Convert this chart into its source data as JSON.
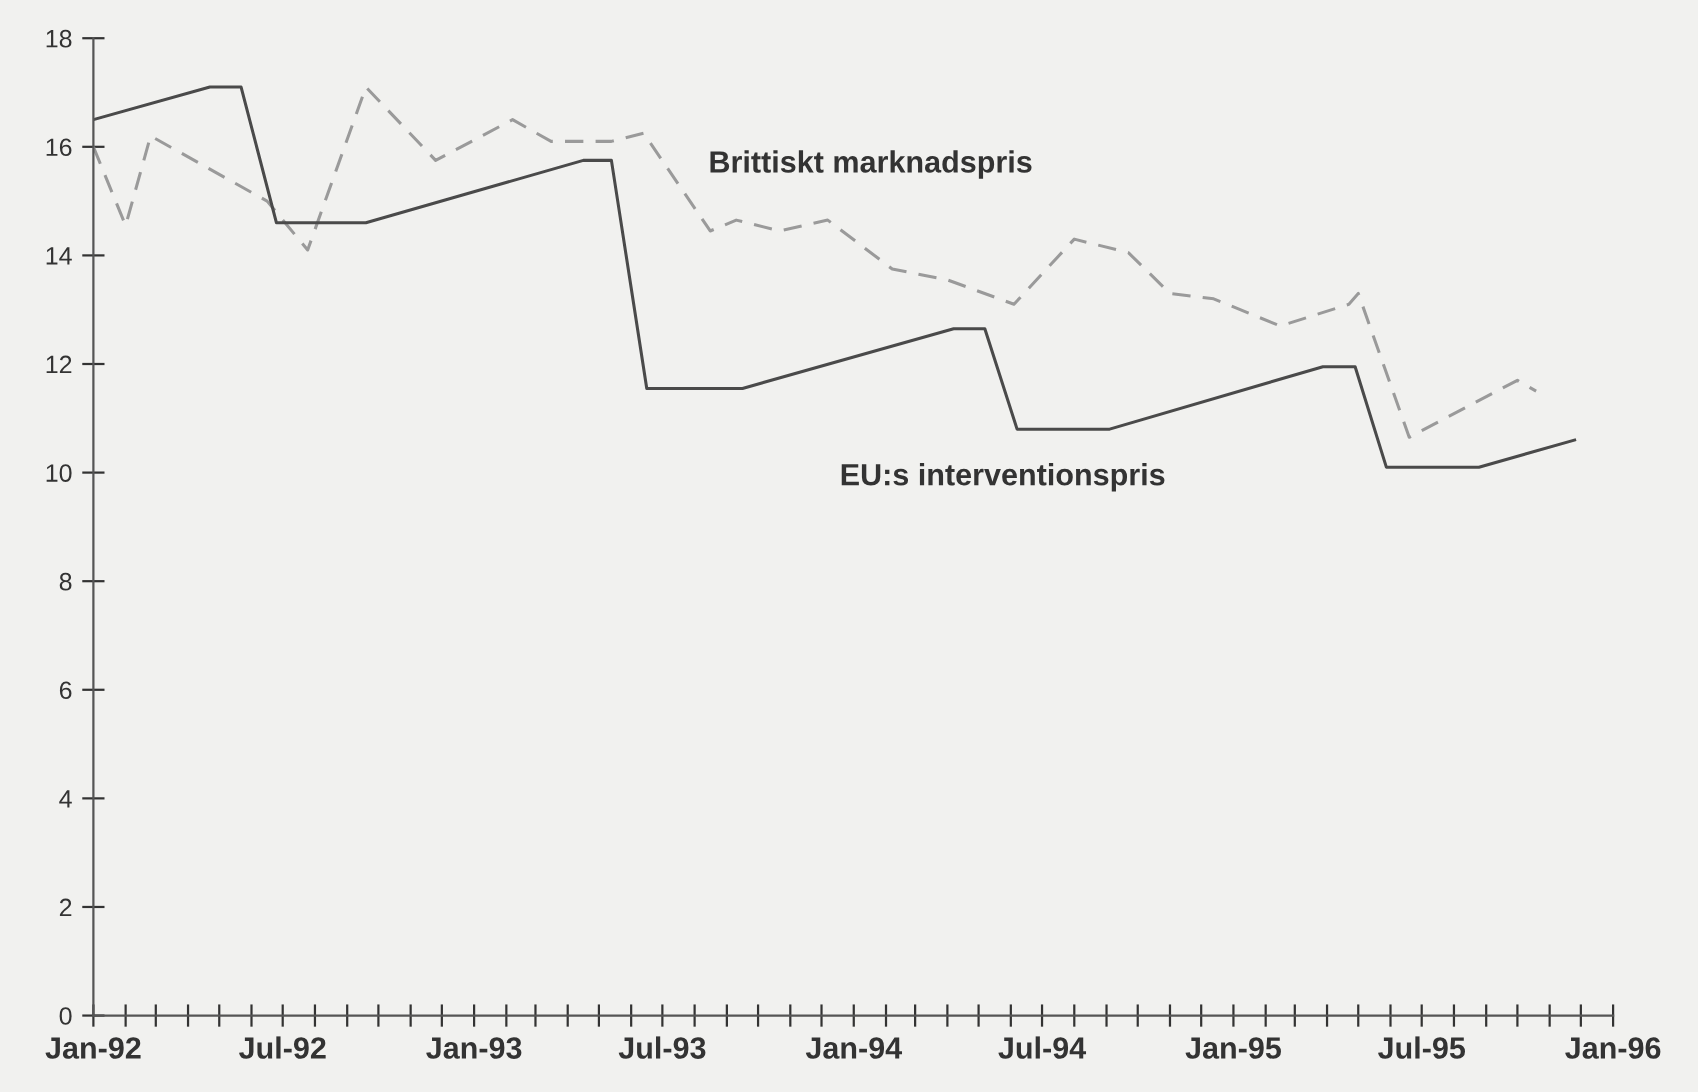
{
  "chart_data": {
    "type": "line",
    "series": [
      {
        "name": "Brittiskt marknadspris",
        "color": "#9a9a9a",
        "line_style": "dashed",
        "x": [
          "1992-01-01",
          "1992-02-01",
          "1992-02-25",
          "1992-06-16",
          "1992-07-25",
          "1992-09-19",
          "1992-11-25",
          "1993-02-07",
          "1993-03-16",
          "1993-05-13",
          "1993-06-13",
          "1993-08-16",
          "1993-09-10",
          "1993-10-22",
          "1993-12-07",
          "1994-02-07",
          "1994-04-01",
          "1994-06-04",
          "1994-08-01",
          "1994-09-22",
          "1994-11-01",
          "1994-12-13",
          "1995-02-15",
          "1995-04-22",
          "1995-05-01",
          "1995-06-19",
          "1995-10-01",
          "1995-10-19"
        ],
        "values": [
          16.0,
          14.55,
          16.2,
          15.0,
          14.1,
          17.1,
          15.75,
          16.5,
          16.1,
          16.1,
          16.25,
          14.45,
          14.65,
          14.45,
          14.65,
          13.75,
          13.55,
          13.1,
          14.3,
          14.05,
          13.3,
          13.2,
          12.7,
          13.1,
          13.3,
          10.65,
          11.7,
          11.5
        ]
      },
      {
        "name": "EU:s interventionspris",
        "color": "#4a4a4a",
        "line_style": "solid",
        "x": [
          "1992-01-01",
          "1992-04-22",
          "1992-05-22",
          "1992-06-25",
          "1992-09-19",
          "1993-04-16",
          "1993-05-13",
          "1993-06-16",
          "1993-09-16",
          "1994-04-07",
          "1994-05-07",
          "1994-06-07",
          "1994-09-04",
          "1995-03-28",
          "1995-04-28",
          "1995-05-28",
          "1995-08-25",
          "1995-11-25"
        ],
        "values": [
          16.5,
          17.1,
          17.1,
          14.6,
          14.6,
          15.75,
          15.75,
          11.55,
          11.55,
          12.65,
          12.65,
          10.8,
          10.8,
          11.95,
          11.95,
          10.1,
          10.1,
          10.6
        ]
      }
    ],
    "xlim": [
      "1992-01",
      "1996-01"
    ],
    "xticks": [
      {
        "value": "1992-01",
        "label": "Jan-92"
      },
      {
        "value": "1992-02",
        "label": null
      },
      {
        "value": "1992-03",
        "label": null
      },
      {
        "value": "1992-04",
        "label": null
      },
      {
        "value": "1992-05",
        "label": null
      },
      {
        "value": "1992-06",
        "label": null
      },
      {
        "value": "1992-07",
        "label": "Jul-92"
      },
      {
        "value": "1992-08",
        "label": null
      },
      {
        "value": "1992-09",
        "label": null
      },
      {
        "value": "1992-10",
        "label": null
      },
      {
        "value": "1992-11",
        "label": null
      },
      {
        "value": "1992-12",
        "label": null
      },
      {
        "value": "1993-01",
        "label": "Jan-93"
      },
      {
        "value": "1993-02",
        "label": null
      },
      {
        "value": "1993-03",
        "label": null
      },
      {
        "value": "1993-04",
        "label": null
      },
      {
        "value": "1993-05",
        "label": null
      },
      {
        "value": "1993-06",
        "label": null
      },
      {
        "value": "1993-07",
        "label": "Jul-93"
      },
      {
        "value": "1993-08",
        "label": null
      },
      {
        "value": "1993-09",
        "label": null
      },
      {
        "value": "1993-10",
        "label": null
      },
      {
        "value": "1993-11",
        "label": null
      },
      {
        "value": "1993-12",
        "label": null
      },
      {
        "value": "1994-01",
        "label": "Jan-94"
      },
      {
        "value": "1994-02",
        "label": null
      },
      {
        "value": "1994-03",
        "label": null
      },
      {
        "value": "1994-04",
        "label": null
      },
      {
        "value": "1994-05",
        "label": null
      },
      {
        "value": "1994-06",
        "label": null
      },
      {
        "value": "1994-07",
        "label": "Jul-94"
      },
      {
        "value": "1994-08",
        "label": null
      },
      {
        "value": "1994-09",
        "label": null
      },
      {
        "value": "1994-10",
        "label": null
      },
      {
        "value": "1994-11",
        "label": null
      },
      {
        "value": "1994-12",
        "label": null
      },
      {
        "value": "1995-01",
        "label": "Jan-95"
      },
      {
        "value": "1995-02",
        "label": null
      },
      {
        "value": "1995-03",
        "label": null
      },
      {
        "value": "1995-04",
        "label": null
      },
      {
        "value": "1995-05",
        "label": null
      },
      {
        "value": "1995-06",
        "label": null
      },
      {
        "value": "1995-07",
        "label": "Jul-95"
      },
      {
        "value": "1995-08",
        "label": null
      },
      {
        "value": "1995-09",
        "label": null
      },
      {
        "value": "1995-10",
        "label": null
      },
      {
        "value": "1995-11",
        "label": null
      },
      {
        "value": "1995-12",
        "label": null
      },
      {
        "value": "1996-01",
        "label": "Jan-96"
      }
    ],
    "ylim": [
      0,
      18
    ],
    "yticks": [
      0,
      2,
      4,
      6,
      8,
      10,
      12,
      14,
      16,
      18
    ],
    "grid": false,
    "legend": false,
    "marker": "none"
  }
}
